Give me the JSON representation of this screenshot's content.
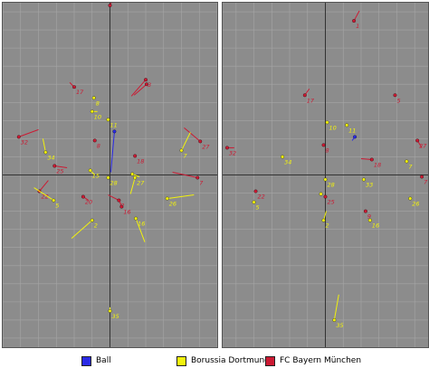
{
  "colors": {
    "field": "#8c8c8c",
    "grid": "#a6a6a6",
    "axis": "#333333",
    "ball": "#2a2ae6",
    "dortmund": "#f2f20d",
    "bayern": "#cc1a33"
  },
  "legend": [
    {
      "label": "Ball",
      "color": "#2a2ae6"
    },
    {
      "label": "Borussia Dortmund",
      "color": "#f2f20d"
    },
    {
      "label": "FC Bayern München",
      "color": "#cc1a33"
    }
  ],
  "chart_data": [
    {
      "type": "scatter",
      "panel": "left",
      "xlim": [
        -120,
        120
      ],
      "ylim": [
        -190,
        190
      ],
      "grid": true,
      "axes": "centered-cross",
      "points": [
        {
          "label": "",
          "team": "bayern",
          "x": 0,
          "y": 187,
          "dx": 2,
          "dy": 4
        },
        {
          "label": "17",
          "team": "bayern",
          "x": -40,
          "y": 97,
          "dx": -5,
          "dy": 5
        },
        {
          "label": "3",
          "team": "bayern",
          "x": 40,
          "y": 105,
          "dx": -16,
          "dy": -18
        },
        {
          "label": "",
          "team": "bayern",
          "x": 41,
          "y": 100,
          "dx": -14,
          "dy": -12
        },
        {
          "label": "8",
          "team": "dortmund",
          "x": -18,
          "y": 85,
          "dx": 0,
          "dy": 0
        },
        {
          "label": "10",
          "team": "dortmund",
          "x": -20,
          "y": 70,
          "dx": 6,
          "dy": 0
        },
        {
          "label": "11",
          "team": "dortmund",
          "x": -2,
          "y": 61,
          "dx": 0,
          "dy": 0
        },
        {
          "label": "",
          "team": "ball",
          "x": 5,
          "y": 48,
          "dx": -4,
          "dy": -45
        },
        {
          "label": "32",
          "team": "bayern",
          "x": -102,
          "y": 42,
          "dx": 22,
          "dy": 8
        },
        {
          "label": "27",
          "team": "bayern",
          "x": 101,
          "y": 37,
          "dx": -18,
          "dy": 15
        },
        {
          "label": "34",
          "team": "dortmund",
          "x": -72,
          "y": 25,
          "dx": -3,
          "dy": 15
        },
        {
          "label": "8",
          "team": "bayern",
          "x": -17,
          "y": 38,
          "dx": 0,
          "dy": 0
        },
        {
          "label": "18",
          "team": "bayern",
          "x": 28,
          "y": 21,
          "dx": 0,
          "dy": 0
        },
        {
          "label": "7",
          "team": "dortmund",
          "x": 80,
          "y": 27,
          "dx": 10,
          "dy": 20
        },
        {
          "label": "25",
          "team": "bayern",
          "x": -62,
          "y": 10,
          "dx": 14,
          "dy": -2
        },
        {
          "label": "15",
          "team": "dortmund",
          "x": -22,
          "y": 5,
          "dx": 5,
          "dy": -5
        },
        {
          "label": "28",
          "team": "dortmund",
          "x": -2,
          "y": -3,
          "dx": 0,
          "dy": 0
        },
        {
          "label": "",
          "team": "dortmund",
          "x": 25,
          "y": 1,
          "dx": 8,
          "dy": -3
        },
        {
          "label": "27",
          "team": "dortmund",
          "x": 28,
          "y": -3,
          "dx": -5,
          "dy": -18
        },
        {
          "label": "7",
          "team": "bayern",
          "x": 98,
          "y": -3,
          "dx": -28,
          "dy": 6
        },
        {
          "label": "22",
          "team": "bayern",
          "x": -79,
          "y": -18,
          "dx": 10,
          "dy": 12
        },
        {
          "label": "5",
          "team": "dortmund",
          "x": -63,
          "y": -28,
          "dx": -22,
          "dy": 14
        },
        {
          "label": "20",
          "team": "bayern",
          "x": -30,
          "y": -24,
          "dx": 6,
          "dy": -4
        },
        {
          "label": "2",
          "team": "bayern",
          "x": 10,
          "y": -28,
          "dx": -12,
          "dy": 6
        },
        {
          "label": "16",
          "team": "bayern",
          "x": 13,
          "y": -35,
          "dx": -3,
          "dy": 8
        },
        {
          "label": "26",
          "team": "dortmund",
          "x": 64,
          "y": -26,
          "dx": 30,
          "dy": 4
        },
        {
          "label": "2",
          "team": "dortmund",
          "x": -20,
          "y": -50,
          "dx": -23,
          "dy": -20
        },
        {
          "label": "16",
          "team": "dortmund",
          "x": 29,
          "y": -48,
          "dx": 10,
          "dy": -26
        },
        {
          "label": "35",
          "team": "dortmund",
          "x": 0,
          "y": -150,
          "dx": 0,
          "dy": 4
        }
      ]
    },
    {
      "type": "scatter",
      "panel": "right",
      "xlim": [
        -115,
        115
      ],
      "ylim": [
        -190,
        190
      ],
      "grid": true,
      "axes": "centered-cross",
      "points": [
        {
          "label": "1",
          "team": "bayern",
          "x": 32,
          "y": 170,
          "dx": 6,
          "dy": 11
        },
        {
          "label": "17",
          "team": "bayern",
          "x": -23,
          "y": 88,
          "dx": 5,
          "dy": 7
        },
        {
          "label": "5",
          "team": "bayern",
          "x": 78,
          "y": 88,
          "dx": 1,
          "dy": 0
        },
        {
          "label": "10",
          "team": "dortmund",
          "x": 2,
          "y": 58,
          "dx": 0,
          "dy": 0
        },
        {
          "label": "11",
          "team": "dortmund",
          "x": 24,
          "y": 55,
          "dx": 0,
          "dy": 0
        },
        {
          "label": "",
          "team": "ball",
          "x": 33,
          "y": 42,
          "dx": -3,
          "dy": -4
        },
        {
          "label": "8",
          "team": "bayern",
          "x": -2,
          "y": 33,
          "dx": 0,
          "dy": 0
        },
        {
          "label": "32",
          "team": "bayern",
          "x": -110,
          "y": 30,
          "dx": 8,
          "dy": 0
        },
        {
          "label": "27",
          "team": "bayern",
          "x": 103,
          "y": 38,
          "dx": 5,
          "dy": -8
        },
        {
          "label": "34",
          "team": "dortmund",
          "x": -48,
          "y": 20,
          "dx": 0,
          "dy": 0
        },
        {
          "label": "18",
          "team": "bayern",
          "x": 52,
          "y": 17,
          "dx": -12,
          "dy": 1
        },
        {
          "label": "7",
          "team": "dortmund",
          "x": 91,
          "y": 15,
          "dx": 0,
          "dy": 0
        },
        {
          "label": "28",
          "team": "dortmund",
          "x": 0,
          "y": -5,
          "dx": 0,
          "dy": 0
        },
        {
          "label": "33",
          "team": "dortmund",
          "x": 43,
          "y": -5,
          "dx": 0,
          "dy": 0
        },
        {
          "label": "7",
          "team": "bayern",
          "x": 108,
          "y": -2,
          "dx": 0,
          "dy": 0
        },
        {
          "label": "22",
          "team": "bayern",
          "x": -78,
          "y": -18,
          "dx": 0,
          "dy": 0
        },
        {
          "label": "5",
          "team": "dortmund",
          "x": -80,
          "y": -30,
          "dx": 0,
          "dy": 0
        },
        {
          "label": "",
          "team": "dortmund",
          "x": -5,
          "y": -21,
          "dx": 0,
          "dy": 0
        },
        {
          "label": "25",
          "team": "bayern",
          "x": 0,
          "y": -24,
          "dx": 0,
          "dy": 0
        },
        {
          "label": "26",
          "team": "dortmund",
          "x": 95,
          "y": -26,
          "dx": 0,
          "dy": 0
        },
        {
          "label": "9",
          "team": "bayern",
          "x": 45,
          "y": -40,
          "dx": 0,
          "dy": 0
        },
        {
          "label": "2",
          "team": "dortmund",
          "x": -2,
          "y": -50,
          "dx": 3,
          "dy": 10
        },
        {
          "label": "16",
          "team": "dortmund",
          "x": 50,
          "y": -50,
          "dx": 0,
          "dy": 0
        },
        {
          "label": "35",
          "team": "dortmund",
          "x": 10,
          "y": -160,
          "dx": 5,
          "dy": 28
        }
      ]
    }
  ]
}
